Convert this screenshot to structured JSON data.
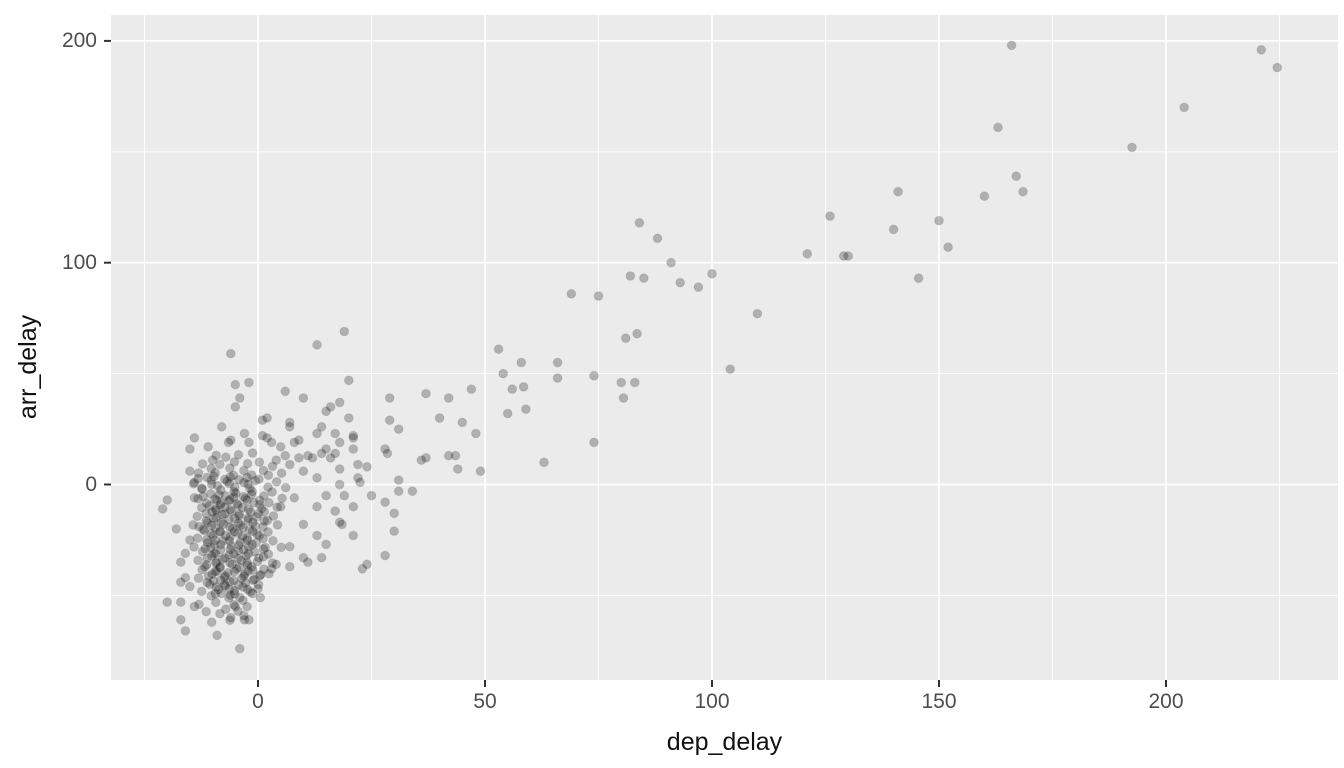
{
  "chart_data": {
    "type": "scatter",
    "title": "",
    "xlabel": "dep_delay",
    "ylabel": "arr_delay",
    "x_ticks": [
      0,
      50,
      100,
      150,
      200
    ],
    "y_ticks": [
      0,
      100,
      200
    ],
    "x_minor_ticks": [
      -25,
      25,
      75,
      125,
      175,
      225
    ],
    "y_minor_ticks": [
      -50,
      50,
      150
    ],
    "xlim": [
      -32,
      238
    ],
    "ylim": [
      -88,
      212
    ],
    "grid": "major-and-minor, white on gray panel",
    "legend": "none",
    "style": {
      "panel_bg": "#EBEBEB",
      "grid_color": "#FFFFFF",
      "tick_color": "#333333",
      "tick_label_color": "#4D4D4D",
      "axis_title_color": "#111111",
      "point_color": "#000000",
      "point_opacity": 0.25,
      "point_radius": 4.4
    },
    "points": [
      [
        221,
        196
      ],
      [
        224.5,
        188
      ],
      [
        204,
        170
      ],
      [
        192.5,
        152
      ],
      [
        166,
        198
      ],
      [
        163,
        161
      ],
      [
        167,
        139
      ],
      [
        168.5,
        132
      ],
      [
        160,
        130
      ],
      [
        141,
        132
      ],
      [
        150,
        119
      ],
      [
        140,
        115
      ],
      [
        152,
        107
      ],
      [
        130,
        103
      ],
      [
        145.5,
        93
      ],
      [
        84,
        118
      ],
      [
        88,
        111
      ],
      [
        91,
        100
      ],
      [
        82,
        94
      ],
      [
        85,
        93
      ],
      [
        93,
        91
      ],
      [
        97,
        89
      ],
      [
        100,
        95
      ],
      [
        110,
        77
      ],
      [
        121,
        104
      ],
      [
        126,
        121
      ],
      [
        129,
        103
      ],
      [
        81,
        66
      ],
      [
        83.5,
        68
      ],
      [
        104,
        52
      ],
      [
        80,
        46
      ],
      [
        83,
        46
      ],
      [
        80.5,
        39
      ],
      [
        69,
        86
      ],
      [
        75,
        85
      ],
      [
        53,
        61
      ],
      [
        58,
        55
      ],
      [
        54,
        50
      ],
      [
        66,
        55
      ],
      [
        66,
        48
      ],
      [
        74,
        49
      ],
      [
        56,
        43
      ],
      [
        58.5,
        44
      ],
      [
        55,
        32
      ],
      [
        59,
        34
      ],
      [
        74,
        19
      ],
      [
        63,
        10
      ],
      [
        47,
        43
      ],
      [
        37,
        41
      ],
      [
        42,
        39
      ],
      [
        29,
        39
      ],
      [
        40,
        30
      ],
      [
        45,
        28
      ],
      [
        29,
        29
      ],
      [
        31,
        25
      ],
      [
        48,
        23
      ],
      [
        28,
        16
      ],
      [
        28.5,
        14
      ],
      [
        37,
        12
      ],
      [
        36,
        11
      ],
      [
        42,
        13
      ],
      [
        43.5,
        13
      ],
      [
        44,
        7
      ],
      [
        49,
        6
      ],
      [
        31,
        2
      ],
      [
        31,
        -3
      ],
      [
        34,
        -3
      ],
      [
        25,
        -5
      ],
      [
        20,
        47
      ],
      [
        21,
        22
      ],
      [
        21,
        16
      ],
      [
        22,
        9
      ],
      [
        24,
        8
      ],
      [
        22,
        3
      ],
      [
        22.5,
        1
      ],
      [
        -6,
        59
      ],
      [
        13,
        63
      ],
      [
        19,
        69
      ],
      [
        -5,
        45
      ],
      [
        -2,
        46
      ],
      [
        -4,
        39
      ],
      [
        -5,
        35
      ],
      [
        6,
        42
      ],
      [
        10,
        39
      ],
      [
        18,
        37
      ],
      [
        16,
        35
      ],
      [
        2,
        30
      ],
      [
        1,
        29
      ],
      [
        7,
        28
      ],
      [
        7,
        26
      ],
      [
        -8,
        26
      ],
      [
        13,
        23
      ],
      [
        14,
        26
      ],
      [
        -14,
        21
      ],
      [
        -6,
        20
      ],
      [
        -6.5,
        19
      ],
      [
        -3,
        23
      ],
      [
        -2,
        19
      ],
      [
        2,
        21
      ],
      [
        5,
        17
      ],
      [
        8,
        19
      ],
      [
        -15,
        16
      ],
      [
        -11,
        17
      ],
      [
        18,
        19
      ],
      [
        20,
        30
      ],
      [
        15,
        33
      ],
      [
        14,
        14
      ],
      [
        17,
        14
      ],
      [
        12,
        12
      ],
      [
        9,
        12
      ],
      [
        6,
        13
      ],
      [
        -10,
        11
      ],
      [
        -15,
        6
      ],
      [
        -14,
        1
      ],
      [
        -20,
        -7
      ],
      [
        -21,
        -11
      ],
      [
        -14,
        -6
      ],
      [
        -13,
        -19
      ],
      [
        -18,
        -20
      ],
      [
        -15,
        -25
      ],
      [
        -16,
        -31
      ],
      [
        -17,
        -35
      ],
      [
        -16,
        -42
      ],
      [
        -17,
        -44
      ],
      [
        -20,
        -53
      ],
      [
        -17,
        -53
      ],
      [
        -14,
        -55
      ],
      [
        -13,
        -54
      ],
      [
        -17,
        -61
      ],
      [
        -16,
        -66
      ],
      [
        -9,
        -68
      ],
      [
        -15,
        -46
      ],
      [
        23,
        -38
      ],
      [
        11,
        -35
      ],
      [
        7,
        -37
      ],
      [
        3,
        -38
      ],
      [
        0,
        -47
      ],
      [
        0.5,
        -51
      ],
      [
        -4,
        -51
      ],
      [
        -5,
        -55
      ],
      [
        -6,
        -60
      ],
      [
        -3,
        -61
      ],
      [
        -2,
        -61
      ],
      [
        -4,
        -74
      ],
      [
        17,
        23
      ],
      [
        21,
        21
      ],
      [
        9,
        20
      ],
      [
        15,
        16
      ],
      [
        16,
        12
      ],
      [
        18,
        7
      ],
      [
        4,
        11
      ],
      [
        7,
        9
      ],
      [
        10,
        6
      ],
      [
        13,
        3
      ],
      [
        28,
        -8
      ],
      [
        15,
        -5
      ],
      [
        19,
        -5
      ],
      [
        21,
        -10
      ],
      [
        17,
        -12
      ],
      [
        13,
        -10
      ],
      [
        10,
        -18
      ],
      [
        18,
        -17
      ],
      [
        18.5,
        -18
      ],
      [
        30,
        -13
      ],
      [
        21,
        -23
      ],
      [
        13,
        -23
      ],
      [
        15,
        -27
      ],
      [
        7,
        -28
      ],
      [
        10,
        -33
      ],
      [
        14,
        -33
      ],
      [
        4,
        -36
      ],
      [
        24,
        -36
      ],
      [
        3,
        19
      ],
      [
        1,
        22
      ],
      [
        11,
        13
      ],
      [
        18,
        0
      ],
      [
        8,
        -6
      ],
      [
        5,
        -10
      ],
      [
        30,
        -21
      ],
      [
        28,
        -32
      ],
      [
        -9.2,
        13.1
      ],
      [
        -7.1,
        12.3
      ],
      [
        -4.3,
        13.4
      ],
      [
        -1.2,
        14.2
      ],
      [
        -12.2,
        9.3
      ],
      [
        -8.4,
        9.1
      ],
      [
        -5.2,
        10.2
      ],
      [
        -2.3,
        9.4
      ],
      [
        0.3,
        10.1
      ],
      [
        3.2,
        8.2
      ],
      [
        -10.3,
        7.2
      ],
      [
        -6.2,
        7.4
      ],
      [
        -3.1,
        6.2
      ],
      [
        1.2,
        6.3
      ],
      [
        -13.1,
        5.2
      ],
      [
        -9.4,
        5.3
      ],
      [
        -5.4,
        4.1
      ],
      [
        -1.4,
        4.3
      ],
      [
        2.3,
        4.2
      ],
      [
        5.2,
        5.1
      ],
      [
        -11.2,
        3.2
      ],
      [
        -7.3,
        2.3
      ],
      [
        -4.2,
        2.1
      ],
      [
        0.2,
        2.4
      ],
      [
        4.1,
        1.2
      ],
      [
        -14.2,
        0.3
      ],
      [
        -10.2,
        0.1
      ],
      [
        -6.3,
        0.4
      ],
      [
        -2.2,
        0.2
      ],
      [
        2.2,
        -1.2
      ],
      [
        6.1,
        -1.4
      ],
      [
        -12.3,
        -2.1
      ],
      [
        -8.2,
        -2.4
      ],
      [
        -5.3,
        -3.2
      ],
      [
        -1.3,
        -3.1
      ],
      [
        3.1,
        -3.4
      ],
      [
        -10.4,
        -4.2
      ],
      [
        -7.2,
        -5.1
      ],
      [
        -3.2,
        -5.4
      ],
      [
        1.3,
        -5.2
      ],
      [
        5.3,
        -6.2
      ],
      [
        -13.2,
        -6.4
      ],
      [
        -9.1,
        -7.2
      ],
      [
        -6.4,
        -7.4
      ],
      [
        -2.4,
        -7.1
      ],
      [
        2.4,
        -8.2
      ],
      [
        -11.3,
        -8.4
      ],
      [
        -8.3,
        -9.2
      ],
      [
        -4.4,
        -9.4
      ],
      [
        0.4,
        -9.1
      ],
      [
        4.2,
        -10.2
      ],
      [
        -12.4,
        -10.4
      ],
      [
        -9.3,
        -11.2
      ],
      [
        -6.1,
        -11.4
      ],
      [
        -2.1,
        -11.1
      ],
      [
        1.4,
        -12.2
      ],
      [
        -10.1,
        -12.4
      ],
      [
        -7.4,
        -13.2
      ],
      [
        -4.1,
        -13.4
      ],
      [
        0.1,
        -13.1
      ],
      [
        3.4,
        -14.2
      ],
      [
        -13.4,
        -14.4
      ],
      [
        -9.2,
        -15.2
      ],
      [
        -5.1,
        -15.4
      ],
      [
        -2.2,
        -15.1
      ],
      [
        2.1,
        -16.2
      ],
      [
        -11.4,
        -16.4
      ],
      [
        -8.1,
        -17.2
      ],
      [
        -4.3,
        -17.4
      ],
      [
        -1.1,
        -17.1
      ],
      [
        -14.3,
        -18.2
      ],
      [
        -10.2,
        -18.4
      ],
      [
        -6.2,
        -19.2
      ],
      [
        -3.3,
        -19.4
      ],
      [
        1.1,
        -19.1
      ],
      [
        4.3,
        -18.2
      ],
      [
        -12.1,
        -20.2
      ],
      [
        -8.4,
        -21.1
      ],
      [
        -5.2,
        -21.3
      ],
      [
        -1.2,
        -21.1
      ],
      [
        2.2,
        -21.4
      ],
      [
        -10.3,
        -22.2
      ],
      [
        -7.1,
        -23.1
      ],
      [
        -3.4,
        -23.3
      ],
      [
        0.3,
        -23.1
      ],
      [
        -13.3,
        -24.2
      ],
      [
        -9.4,
        -25.1
      ],
      [
        -6.3,
        -25.3
      ],
      [
        -2.3,
        -25.1
      ],
      [
        3.3,
        -25.4
      ],
      [
        -11.1,
        -26.2
      ],
      [
        -8.2,
        -27.1
      ],
      [
        -4.2,
        -27.3
      ],
      [
        -1.3,
        -27.1
      ],
      [
        -14.1,
        -28.2
      ],
      [
        -10.4,
        -28.4
      ],
      [
        -6.1,
        -29.2
      ],
      [
        -3.2,
        -29.4
      ],
      [
        1.2,
        -29.1
      ],
      [
        5.1,
        -28.3
      ],
      [
        -12.2,
        -30.2
      ],
      [
        -9.3,
        -31.1
      ],
      [
        -5.3,
        -31.3
      ],
      [
        -2.1,
        -31.1
      ],
      [
        2.3,
        -31.4
      ],
      [
        -10.2,
        -32.2
      ],
      [
        -7.3,
        -33.1
      ],
      [
        -4.4,
        -33.3
      ],
      [
        0.2,
        -33.1
      ],
      [
        -13.2,
        -34.2
      ],
      [
        -9.1,
        -35.1
      ],
      [
        -6.2,
        -35.3
      ],
      [
        -2.4,
        -35.1
      ],
      [
        3.2,
        -35.4
      ],
      [
        -11.3,
        -36.2
      ],
      [
        -8.3,
        -37.1
      ],
      [
        -4.1,
        -37.3
      ],
      [
        -1.4,
        -37.1
      ],
      [
        1.3,
        -38.2
      ],
      [
        -12.3,
        -38.4
      ],
      [
        -9.4,
        -39.1
      ],
      [
        -5.2,
        -39.3
      ],
      [
        -2.2,
        -39.1
      ],
      [
        2.4,
        -40.2
      ],
      [
        -10.1,
        -40.4
      ],
      [
        -7.2,
        -41.1
      ],
      [
        -3.1,
        -41.3
      ],
      [
        0.4,
        -41.1
      ],
      [
        -13.1,
        -42.2
      ],
      [
        -8.2,
        -43.1
      ],
      [
        -5.4,
        -43.3
      ],
      [
        -1.1,
        -43.1
      ],
      [
        -11.2,
        -44.2
      ],
      [
        -7.4,
        -45.1
      ],
      [
        -4.3,
        -45.3
      ],
      [
        0.1,
        -45.1
      ],
      [
        -9.2,
        -46.2
      ],
      [
        -6.3,
        -47.1
      ],
      [
        -2.3,
        -47.3
      ],
      [
        -12.4,
        -48.2
      ],
      [
        -8.1,
        -49.1
      ],
      [
        -5.1,
        -49.3
      ],
      [
        -1.2,
        -49.1
      ],
      [
        -10.3,
        -50.2
      ],
      [
        -6.4,
        -51.1
      ],
      [
        -3.3,
        -52.2
      ],
      [
        -9.3,
        -53.1
      ],
      [
        -5.3,
        -54.2
      ],
      [
        -2.4,
        -55.1
      ],
      [
        -7.1,
        -56.2
      ],
      [
        -4.4,
        -57.1
      ],
      [
        -11.4,
        -57.3
      ],
      [
        -8.4,
        -58.2
      ],
      [
        -3.1,
        -59.1
      ],
      [
        -6.2,
        -61.2
      ],
      [
        -10.2,
        -62.1
      ],
      [
        -9.5,
        -6.5
      ],
      [
        -6.2,
        -6.8
      ],
      [
        -2.8,
        -6.3
      ],
      [
        0.4,
        -7.1
      ],
      [
        -8.1,
        -8.4
      ],
      [
        -4.6,
        -8.6
      ],
      [
        -0.9,
        -8.2
      ],
      [
        -10.7,
        -9.6
      ],
      [
        -7.3,
        -10.2
      ],
      [
        -3.4,
        -10.4
      ],
      [
        0.8,
        -10.8
      ],
      [
        -9.2,
        -11.7
      ],
      [
        -5.8,
        -12.1
      ],
      [
        -1.6,
        -12.4
      ],
      [
        -11.4,
        -13.1
      ],
      [
        -7.9,
        -13.6
      ],
      [
        -4.2,
        -14.2
      ],
      [
        -0.3,
        -14.6
      ],
      [
        -9.8,
        -15.3
      ],
      [
        -6.4,
        -15.8
      ],
      [
        -2.2,
        -16.1
      ],
      [
        1.4,
        -16.4
      ],
      [
        -11.1,
        -17.2
      ],
      [
        -7.6,
        -17.8
      ],
      [
        -3.8,
        -18.3
      ],
      [
        -0.6,
        -18.7
      ],
      [
        -9.4,
        -19.4
      ],
      [
        -5.6,
        -19.8
      ],
      [
        -1.9,
        -20.3
      ],
      [
        -11.8,
        -20.8
      ],
      [
        -8.3,
        -21.4
      ],
      [
        -4.4,
        -21.9
      ],
      [
        -0.2,
        -22.4
      ],
      [
        -9.9,
        -23.1
      ],
      [
        -6.1,
        -23.6
      ],
      [
        -2.4,
        -24.1
      ],
      [
        1.1,
        -24.4
      ],
      [
        -11.3,
        -24.9
      ],
      [
        -7.7,
        -25.4
      ],
      [
        -3.9,
        -25.9
      ],
      [
        -0.4,
        -26.3
      ],
      [
        -9.6,
        -27.1
      ],
      [
        -5.9,
        -27.6
      ],
      [
        -2.1,
        -28.1
      ],
      [
        1.6,
        -28.4
      ],
      [
        -11.6,
        -28.9
      ],
      [
        -8.2,
        -29.4
      ],
      [
        -4.3,
        -29.9
      ],
      [
        -0.7,
        -30.4
      ],
      [
        -9.7,
        -31.2
      ],
      [
        -6.3,
        -31.7
      ],
      [
        -2.6,
        -32.2
      ],
      [
        1.2,
        -32.6
      ],
      [
        -11.2,
        -33.2
      ],
      [
        -7.8,
        -33.7
      ],
      [
        -3.7,
        -34.2
      ],
      [
        -0.1,
        -34.7
      ],
      [
        -9.3,
        -35.4
      ],
      [
        -5.7,
        -35.9
      ],
      [
        -2.3,
        -36.4
      ],
      [
        -11.7,
        -37.1
      ],
      [
        -8.4,
        -37.6
      ],
      [
        -4.7,
        -38.1
      ],
      [
        -1.1,
        -38.6
      ],
      [
        -9.1,
        -39.3
      ],
      [
        -6.6,
        -39.8
      ],
      [
        -2.9,
        -40.3
      ],
      [
        0.6,
        -40.7
      ],
      [
        -10.9,
        -41.3
      ],
      [
        -7.4,
        -41.8
      ],
      [
        -3.6,
        -42.3
      ],
      [
        -0.8,
        -42.8
      ],
      [
        -9.8,
        -43.4
      ],
      [
        -6.2,
        -43.9
      ],
      [
        -2.7,
        -44.4
      ],
      [
        -10.6,
        -45.1
      ],
      [
        -7.2,
        -45.7
      ],
      [
        -3.3,
        -46.2
      ],
      [
        -8.7,
        -47.3
      ],
      [
        -5.2,
        -47.9
      ],
      [
        -1.7,
        -48.4
      ],
      [
        -9.4,
        -49.2
      ],
      [
        -6.1,
        -49.9
      ],
      [
        -4.9,
        -3.9
      ],
      [
        -1.4,
        -4.4
      ],
      [
        -8.6,
        -4.7
      ],
      [
        -12.1,
        -5.3
      ],
      [
        -5.3,
        -5.7
      ],
      [
        -1.8,
        -1.8
      ],
      [
        -5.1,
        -1.2
      ],
      [
        -8.9,
        -0.6
      ],
      [
        -12.4,
        -1.6
      ],
      [
        -3.1,
        0.8
      ],
      [
        -6.8,
        1.4
      ],
      [
        -10.3,
        1.9
      ],
      [
        -0.6,
        1.7
      ],
      [
        -2.4,
        3.1
      ],
      [
        -6.1,
        3.4
      ],
      [
        -9.7,
        3.7
      ],
      [
        -13.2,
        2.6
      ]
    ]
  }
}
